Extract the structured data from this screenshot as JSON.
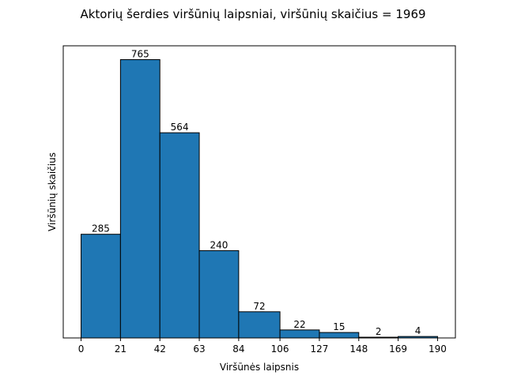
{
  "chart_data": {
    "type": "bar",
    "title": "Aktorių šerdies viršūnių laipsniai, viršūnių skaičius =  1969",
    "xlabel": "Viršūnės laipsnis",
    "ylabel": "Viršūnių skaičius",
    "bin_edges": [
      0,
      21,
      42,
      63,
      84,
      106,
      127,
      148,
      169,
      190
    ],
    "xtick_labels": [
      "0",
      "21",
      "42",
      "63",
      "84",
      "106",
      "127",
      "148",
      "169",
      "190"
    ],
    "values": [
      285,
      765,
      564,
      240,
      72,
      22,
      15,
      2,
      4
    ],
    "value_labels": [
      "285",
      "765",
      "564",
      "240",
      "72",
      "22",
      "15",
      "2",
      "4"
    ],
    "ylim": [
      0,
      803
    ],
    "show_yticks": false,
    "grid": false,
    "bar_color": "#1f77b4",
    "edge_color": "#000000"
  }
}
